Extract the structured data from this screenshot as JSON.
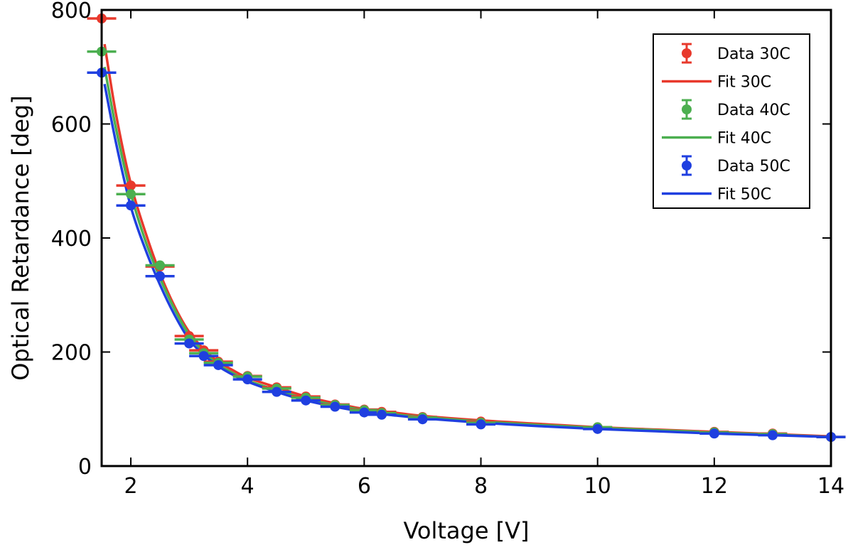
{
  "chart_data": {
    "type": "line",
    "title": "",
    "xlabel": "Voltage [V]",
    "ylabel": "Optical Retardance [deg]",
    "xlim": [
      1.5,
      14
    ],
    "ylim": [
      0,
      800
    ],
    "xticks": [
      2,
      4,
      6,
      8,
      10,
      12,
      14
    ],
    "yticks": [
      0,
      200,
      400,
      600,
      800
    ],
    "xtick_labels": [
      "2",
      "4",
      "6",
      "8",
      "10",
      "12",
      "14"
    ],
    "ytick_labels": [
      "0",
      "200",
      "400",
      "600",
      "800"
    ],
    "grid": false,
    "legend_position": "top-right",
    "x_error": 0.25,
    "series": [
      {
        "name": "Data 30C",
        "kind": "errorbar",
        "color": "#e8392c",
        "x": [
          1.5,
          2.0,
          2.5,
          3.0,
          3.25,
          3.5,
          4.0,
          4.5,
          5.0,
          5.5,
          6.0,
          6.3,
          7.0,
          8.0,
          10.0,
          12.0,
          13.0,
          14.0
        ],
        "y": [
          785,
          492,
          350,
          228,
          203,
          183,
          158,
          138,
          122,
          108,
          99,
          95,
          86,
          78,
          68,
          60,
          57,
          51
        ]
      },
      {
        "name": "Fit 30C",
        "kind": "line",
        "color": "#e8392c",
        "x": [
          1.55,
          1.75,
          2.0,
          2.25,
          2.5,
          2.75,
          3.0,
          3.25,
          3.5,
          3.75,
          4.0,
          4.5,
          5.0,
          5.5,
          6.0,
          6.5,
          7.0,
          8.0,
          9.0,
          10.0,
          11.0,
          12.0,
          13.0,
          14.0
        ],
        "y": [
          740,
          615,
          495,
          410,
          338,
          280,
          235,
          205,
          183,
          168,
          155,
          138,
          122,
          110,
          100,
          94,
          88,
          80,
          74,
          68,
          64,
          60,
          56,
          52
        ]
      },
      {
        "name": "Data 40C",
        "kind": "errorbar",
        "color": "#4caf50",
        "x": [
          1.5,
          2.0,
          2.5,
          3.0,
          3.25,
          3.5,
          4.0,
          4.5,
          5.0,
          5.5,
          6.0,
          6.3,
          7.0,
          8.0,
          10.0,
          12.0,
          13.0,
          14.0
        ],
        "y": [
          727,
          477,
          352,
          222,
          198,
          181,
          157,
          136,
          120,
          107,
          98,
          93,
          85,
          76,
          68,
          59,
          56,
          51
        ]
      },
      {
        "name": "Fit 40C",
        "kind": "line",
        "color": "#4caf50",
        "x": [
          1.55,
          1.75,
          2.0,
          2.25,
          2.5,
          2.75,
          3.0,
          3.25,
          3.5,
          3.75,
          4.0,
          4.5,
          5.0,
          5.5,
          6.0,
          6.5,
          7.0,
          8.0,
          9.0,
          10.0,
          11.0,
          12.0,
          13.0,
          14.0
        ],
        "y": [
          700,
          590,
          478,
          395,
          330,
          275,
          230,
          200,
          178,
          163,
          150,
          133,
          118,
          107,
          98,
          91,
          86,
          78,
          72,
          67,
          63,
          59,
          55,
          51
        ]
      },
      {
        "name": "Data 50C",
        "kind": "errorbar",
        "color": "#1f3fe0",
        "x": [
          1.5,
          2.0,
          2.5,
          3.0,
          3.25,
          3.5,
          4.0,
          4.5,
          5.0,
          5.5,
          6.0,
          6.3,
          7.0,
          8.0,
          10.0,
          12.0,
          13.0,
          14.0
        ],
        "y": [
          690,
          457,
          333,
          215,
          193,
          177,
          152,
          130,
          115,
          104,
          94,
          90,
          82,
          73,
          65,
          57,
          54,
          51
        ]
      },
      {
        "name": "Fit 50C",
        "kind": "line",
        "color": "#1f3fe0",
        "x": [
          1.55,
          1.75,
          2.0,
          2.25,
          2.5,
          2.75,
          3.0,
          3.25,
          3.5,
          3.75,
          4.0,
          4.5,
          5.0,
          5.5,
          6.0,
          6.5,
          7.0,
          8.0,
          9.0,
          10.0,
          11.0,
          12.0,
          13.0,
          14.0
        ],
        "y": [
          670,
          565,
          455,
          380,
          318,
          265,
          222,
          195,
          175,
          160,
          148,
          130,
          115,
          104,
          95,
          89,
          84,
          76,
          70,
          65,
          61,
          57,
          54,
          51
        ]
      }
    ]
  }
}
